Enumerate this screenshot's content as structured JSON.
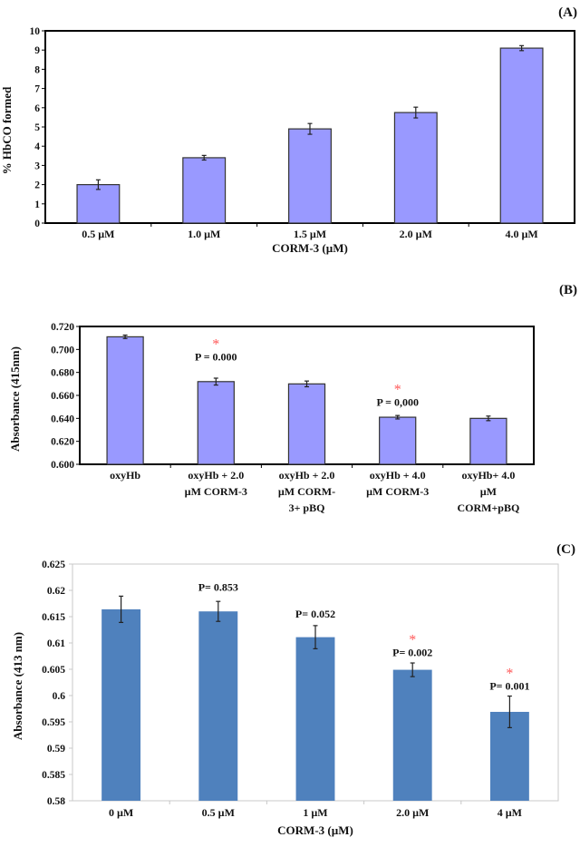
{
  "chart_data": [
    {
      "id": "A",
      "type": "bar",
      "panel_label": "(A)",
      "title": "",
      "xlabel": "CORM-3  (µM)",
      "ylabel": "% HbCO  formed",
      "categories": [
        "0.5 µM",
        "1.0 µM",
        "1.5 µM",
        "2.0 µM",
        "4.0 µM"
      ],
      "values": [
        2.0,
        3.4,
        4.9,
        5.75,
        9.1
      ],
      "errors": [
        0.25,
        0.12,
        0.28,
        0.28,
        0.13
      ],
      "ylim": [
        0,
        10
      ],
      "yticks": [
        0,
        1,
        2,
        3,
        4,
        5,
        6,
        7,
        8,
        9,
        10
      ],
      "ytick_labels": [
        "0",
        "1",
        "2",
        "3",
        "4",
        "5",
        "6",
        "7",
        "8",
        "9",
        "10"
      ],
      "annotations": [],
      "bar_color": "#9999ff",
      "grid": false
    },
    {
      "id": "B",
      "type": "bar",
      "panel_label": "(B)",
      "title": "",
      "xlabel": "",
      "ylabel": "Absorbance (415nm)",
      "categories": [
        [
          "oxyHb"
        ],
        [
          "oxyHb + 2.0",
          "µM CORM-3"
        ],
        [
          "oxyHb + 2.0",
          "µM CORM-",
          "3+ pBQ"
        ],
        [
          "oxyHb + 4.0",
          "µM CORM-3"
        ],
        [
          "oxyHb+ 4.0",
          "µM",
          "CORM+pBQ"
        ]
      ],
      "values": [
        0.711,
        0.672,
        0.67,
        0.641,
        0.64
      ],
      "errors": [
        0.0015,
        0.003,
        0.0025,
        0.0015,
        0.002
      ],
      "ylim": [
        0.6,
        0.72
      ],
      "yticks": [
        0.6,
        0.62,
        0.64,
        0.66,
        0.68,
        0.7,
        0.72
      ],
      "ytick_labels": [
        "0.600",
        "0.620",
        "0.640",
        "0.660",
        "0.680",
        "0.700",
        "0.720"
      ],
      "annotations": [
        {
          "index": 1,
          "text": "P = 0.000",
          "significant": true,
          "y": 0.6905
        },
        {
          "index": 3,
          "text": "P = 0,000",
          "significant": true,
          "y": 0.651
        }
      ],
      "bar_color": "#9999ff",
      "grid": false
    },
    {
      "id": "C",
      "type": "bar",
      "panel_label": "(C)",
      "title": "",
      "xlabel": "CORM-3  (µM)",
      "ylabel": "Absorbance (413 nm)",
      "categories": [
        "0 µM",
        "0.5 µM",
        "1 µM",
        "2.0 µM",
        "4 µM"
      ],
      "values": [
        0.6164,
        0.616,
        0.6111,
        0.6049,
        0.5969
      ],
      "errors": [
        0.0025,
        0.0019,
        0.0022,
        0.0013,
        0.003
      ],
      "ylim": [
        0.58,
        0.625
      ],
      "yticks": [
        0.58,
        0.585,
        0.59,
        0.595,
        0.6,
        0.605,
        0.61,
        0.615,
        0.62,
        0.625
      ],
      "ytick_labels": [
        "0.58",
        "0.585",
        "0.59",
        "0.595",
        "0.6",
        "0.605",
        "0.61",
        "0.615",
        "0.62",
        "0.625"
      ],
      "annotations": [
        {
          "index": 1,
          "text": "P= 0.853",
          "significant": false,
          "y": 0.6199
        },
        {
          "index": 2,
          "text": "P= 0.052",
          "significant": false,
          "y": 0.6148
        },
        {
          "index": 3,
          "text": "P= 0.002",
          "significant": true,
          "y": 0.6075
        },
        {
          "index": 4,
          "text": "P= 0.001",
          "significant": true,
          "y": 0.6011
        }
      ],
      "significance_marker": "*",
      "bar_color": "#4f81bd",
      "grid": false
    }
  ]
}
